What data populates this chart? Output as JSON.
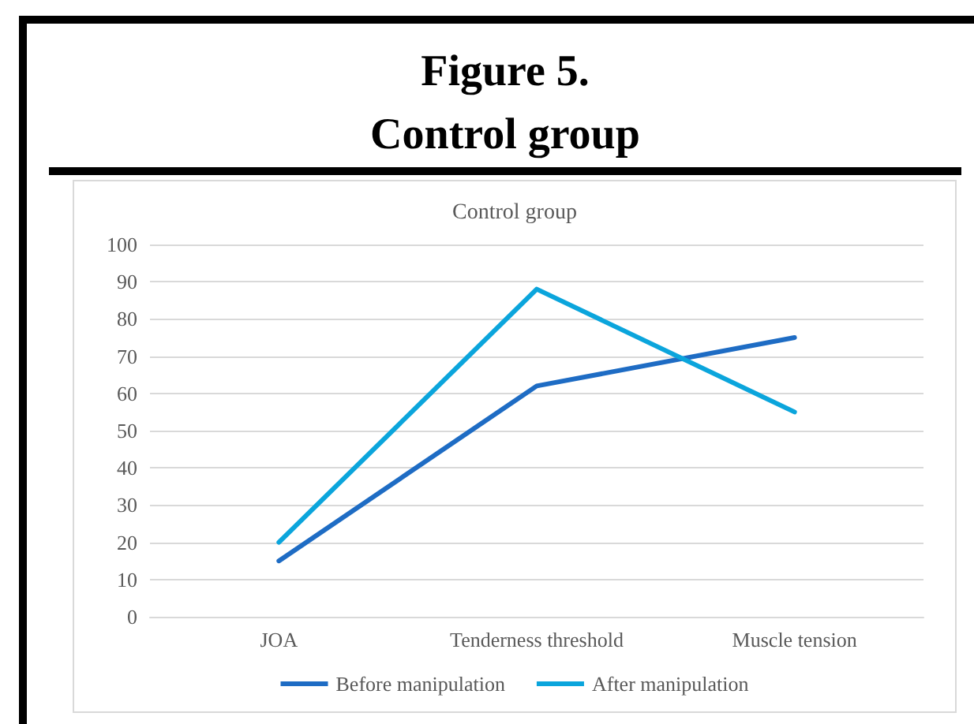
{
  "chart_data": {
    "type": "line",
    "title": "Figure 5.\nControl group",
    "subtitle": "Control group",
    "categories": [
      "JOA",
      "Tenderness threshold",
      "Muscle tension"
    ],
    "series": [
      {
        "name": "Before manipulation",
        "color": "#1e6cc4",
        "values": [
          15,
          62,
          75
        ]
      },
      {
        "name": "After manipulation",
        "color": "#0ba5dc",
        "values": [
          20,
          88,
          55
        ]
      }
    ],
    "ylim": [
      0,
      100
    ],
    "yticks": [
      0,
      10,
      20,
      30,
      40,
      50,
      60,
      70,
      80,
      90,
      100
    ],
    "grid": "y",
    "legend": "bottom",
    "marker": "none",
    "line_style": "solid"
  }
}
